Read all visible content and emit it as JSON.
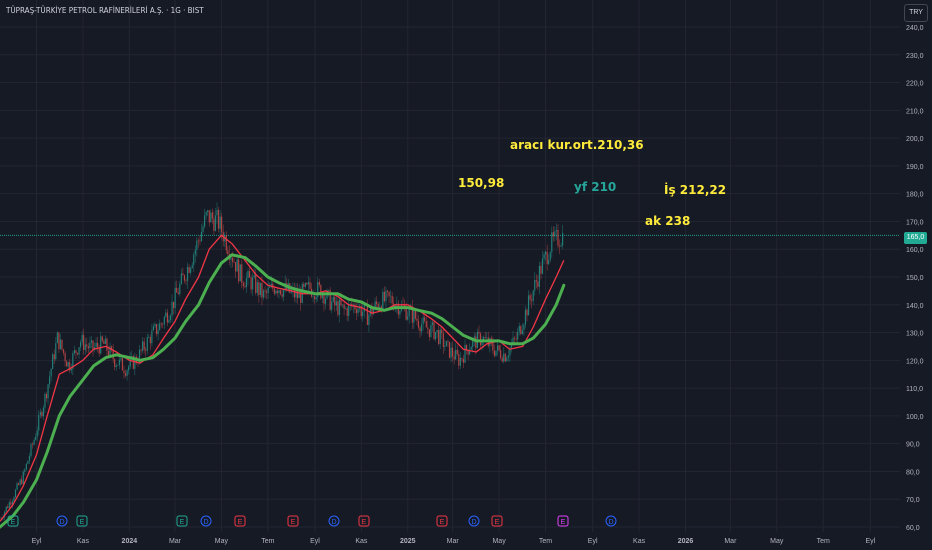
{
  "header": {
    "symbol_title": "TÜPRAŞ-TÜRKİYE PETROL RAFİNERİLERİ A.Ş. · 1G · BIST",
    "currency_button": "TRY",
    "last_price": "165,0"
  },
  "annotations": [
    {
      "id": "araci",
      "text": "aracı kur.ort.210,36",
      "color": "#ffeb3b"
    },
    {
      "id": "p150",
      "text": "150,98",
      "color": "#ffeb3b"
    },
    {
      "id": "yf",
      "text": "yf 210",
      "color": "#26a69a"
    },
    {
      "id": "is",
      "text": "İş 212,22",
      "color": "#ffeb3b"
    },
    {
      "id": "ak",
      "text": "ak 238",
      "color": "#ffeb3b"
    }
  ],
  "events": [
    {
      "type": "E",
      "color": "#22ab94"
    },
    {
      "type": "D",
      "color": "#2962ff"
    },
    {
      "type": "E",
      "color": "#22ab94"
    },
    {
      "type": "E",
      "color": "#22ab94"
    },
    {
      "type": "D",
      "color": "#2962ff"
    },
    {
      "type": "E",
      "color": "#f23645"
    },
    {
      "type": "E",
      "color": "#f23645"
    },
    {
      "type": "D",
      "color": "#2962ff"
    },
    {
      "type": "E",
      "color": "#f23645"
    },
    {
      "type": "E",
      "color": "#f23645"
    },
    {
      "type": "D",
      "color": "#2962ff"
    },
    {
      "type": "E",
      "color": "#f23645"
    },
    {
      "type": "E",
      "color": "#e040fb"
    },
    {
      "type": "D",
      "color": "#2962ff"
    }
  ],
  "colors": {
    "background": "#161a25",
    "grid": "#232632",
    "candle_up": "#26a69a",
    "candle_down": "#ef5350",
    "ma_fast": "#f23645",
    "ma_slow": "#4caf50",
    "price_line": "#22ab94",
    "axis_text": "#b2b5be"
  },
  "chart_data": {
    "type": "line",
    "title": "TÜPRAŞ-TÜRKİYE PETROL RAFİNERİLERİ A.Ş. · 1G · BIST",
    "xlabel": "",
    "ylabel": "",
    "ylim": [
      60,
      240
    ],
    "y_ticks": [
      "60,0",
      "70,0",
      "80,0",
      "90,0",
      "100,0",
      "110,0",
      "120,0",
      "130,0",
      "140,0",
      "150,0",
      "160,0",
      "170,0",
      "180,0",
      "190,0",
      "200,0",
      "210,0",
      "220,0",
      "230,0",
      "240,0"
    ],
    "x_ticks": [
      "Eyl",
      "Kas",
      "2024",
      "Mar",
      "May",
      "Tem",
      "Eyl",
      "Kas",
      "2025",
      "Mar",
      "May",
      "Tem",
      "Eyl",
      "Kas",
      "2026",
      "Mar",
      "May",
      "Tem",
      "Eyl"
    ],
    "x": [
      "2023-07-15",
      "2023-08-01",
      "2023-08-15",
      "2023-09-01",
      "2023-09-15",
      "2023-10-01",
      "2023-10-15",
      "2023-11-01",
      "2023-11-15",
      "2023-12-01",
      "2023-12-15",
      "2024-01-01",
      "2024-01-15",
      "2024-02-01",
      "2024-02-15",
      "2024-03-01",
      "2024-03-15",
      "2024-04-01",
      "2024-04-15",
      "2024-05-01",
      "2024-05-15",
      "2024-06-01",
      "2024-06-15",
      "2024-07-01",
      "2024-07-15",
      "2024-08-01",
      "2024-08-15",
      "2024-09-01",
      "2024-09-15",
      "2024-10-01",
      "2024-10-15",
      "2024-11-01",
      "2024-11-15",
      "2024-12-01",
      "2024-12-15",
      "2025-01-01",
      "2025-01-15",
      "2025-02-01",
      "2025-02-15",
      "2025-03-01",
      "2025-03-15",
      "2025-04-01",
      "2025-04-15",
      "2025-05-01",
      "2025-05-15",
      "2025-06-01",
      "2025-06-15",
      "2025-07-01",
      "2025-07-15",
      "2025-07-25"
    ],
    "last_price": 165.0,
    "series": [
      {
        "name": "",
        "values": [
          63,
          70,
          78,
          92,
          108,
          128,
          118,
          127,
          124,
          126,
          120,
          117,
          121,
          128,
          133,
          140,
          150,
          160,
          172,
          170,
          160,
          150,
          148,
          143,
          147,
          145,
          143,
          146,
          145,
          140,
          138,
          140,
          136,
          141,
          142,
          139,
          136,
          132,
          130,
          124,
          120,
          126,
          128,
          124,
          122,
          128,
          140,
          152,
          162,
          165
        ]
      },
      {
        "name": "",
        "values": [
          62,
          68,
          75,
          86,
          100,
          115,
          117,
          120,
          124,
          125,
          123,
          120,
          119,
          122,
          128,
          134,
          142,
          150,
          160,
          165,
          162,
          156,
          151,
          147,
          146,
          145,
          144,
          144,
          145,
          143,
          140,
          139,
          137,
          138,
          140,
          140,
          138,
          135,
          132,
          128,
          124,
          123,
          126,
          127,
          124,
          125,
          132,
          142,
          150,
          156
        ]
      },
      {
        "name": "",
        "values": [
          60,
          64,
          69,
          77,
          87,
          100,
          107,
          113,
          118,
          121,
          122,
          121,
          120,
          121,
          124,
          128,
          134,
          140,
          148,
          155,
          158,
          157,
          154,
          150,
          148,
          146,
          145,
          144,
          144,
          144,
          142,
          141,
          139,
          138,
          139,
          139,
          138,
          137,
          135,
          132,
          129,
          127,
          127,
          127,
          126,
          126,
          128,
          133,
          140,
          147
        ]
      }
    ]
  }
}
